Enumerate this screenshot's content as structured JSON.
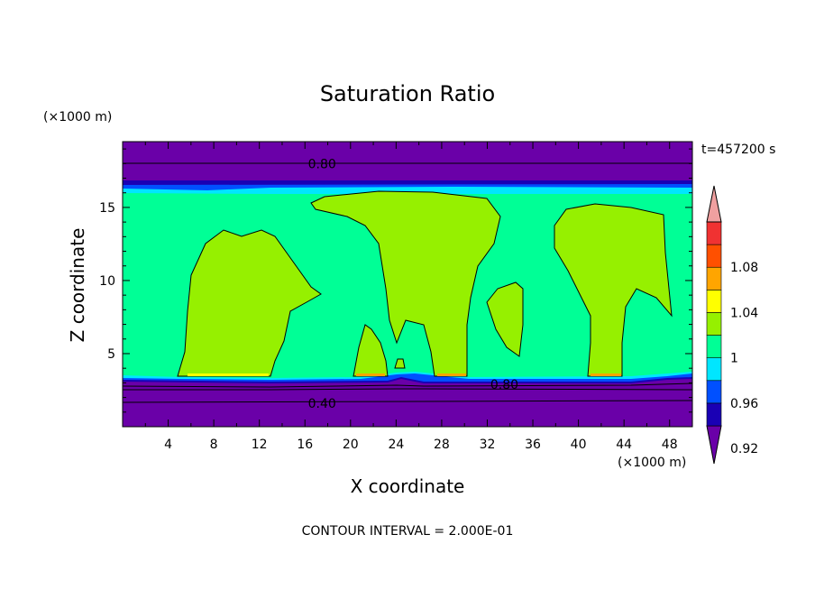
{
  "chart_data": {
    "type": "heatmap",
    "title": "Saturation Ratio",
    "xlabel": "X coordinate",
    "ylabel": "Z coordinate",
    "x_unit": "(×1000 m)",
    "y_unit": "(×1000 m)",
    "time_label": "t=457200 s",
    "footer": "CONTOUR INTERVAL = 2.000E-01",
    "xlim": [
      0,
      50
    ],
    "ylim": [
      0,
      19.5
    ],
    "x_ticks": [
      "4",
      "8",
      "12",
      "16",
      "20",
      "24",
      "28",
      "32",
      "36",
      "40",
      "44",
      "48"
    ],
    "y_ticks": [
      "5",
      "10",
      "15"
    ],
    "contour_labels": [
      {
        "text": "0.80",
        "x": 17.5,
        "z": 18.0
      },
      {
        "text": "0.80",
        "x": 33.5,
        "z": 2.9
      },
      {
        "text": "0.40",
        "x": 17.5,
        "z": 1.6
      }
    ],
    "colorbar": {
      "labels": [
        "1.08",
        "1.04",
        "1",
        "0.96",
        "0.92"
      ],
      "levels": [
        {
          "color": "#6a00a8"
        },
        {
          "color": "#1a00b4"
        },
        {
          "color": "#0050ff"
        },
        {
          "color": "#00e6ff"
        },
        {
          "color": "#00ff96"
        },
        {
          "color": "#96f000"
        },
        {
          "color": "#ffff00"
        },
        {
          "color": "#ffa500"
        },
        {
          "color": "#ff5000"
        },
        {
          "color": "#f03232"
        },
        {
          "color": "#f0a0a0"
        }
      ]
    }
  }
}
